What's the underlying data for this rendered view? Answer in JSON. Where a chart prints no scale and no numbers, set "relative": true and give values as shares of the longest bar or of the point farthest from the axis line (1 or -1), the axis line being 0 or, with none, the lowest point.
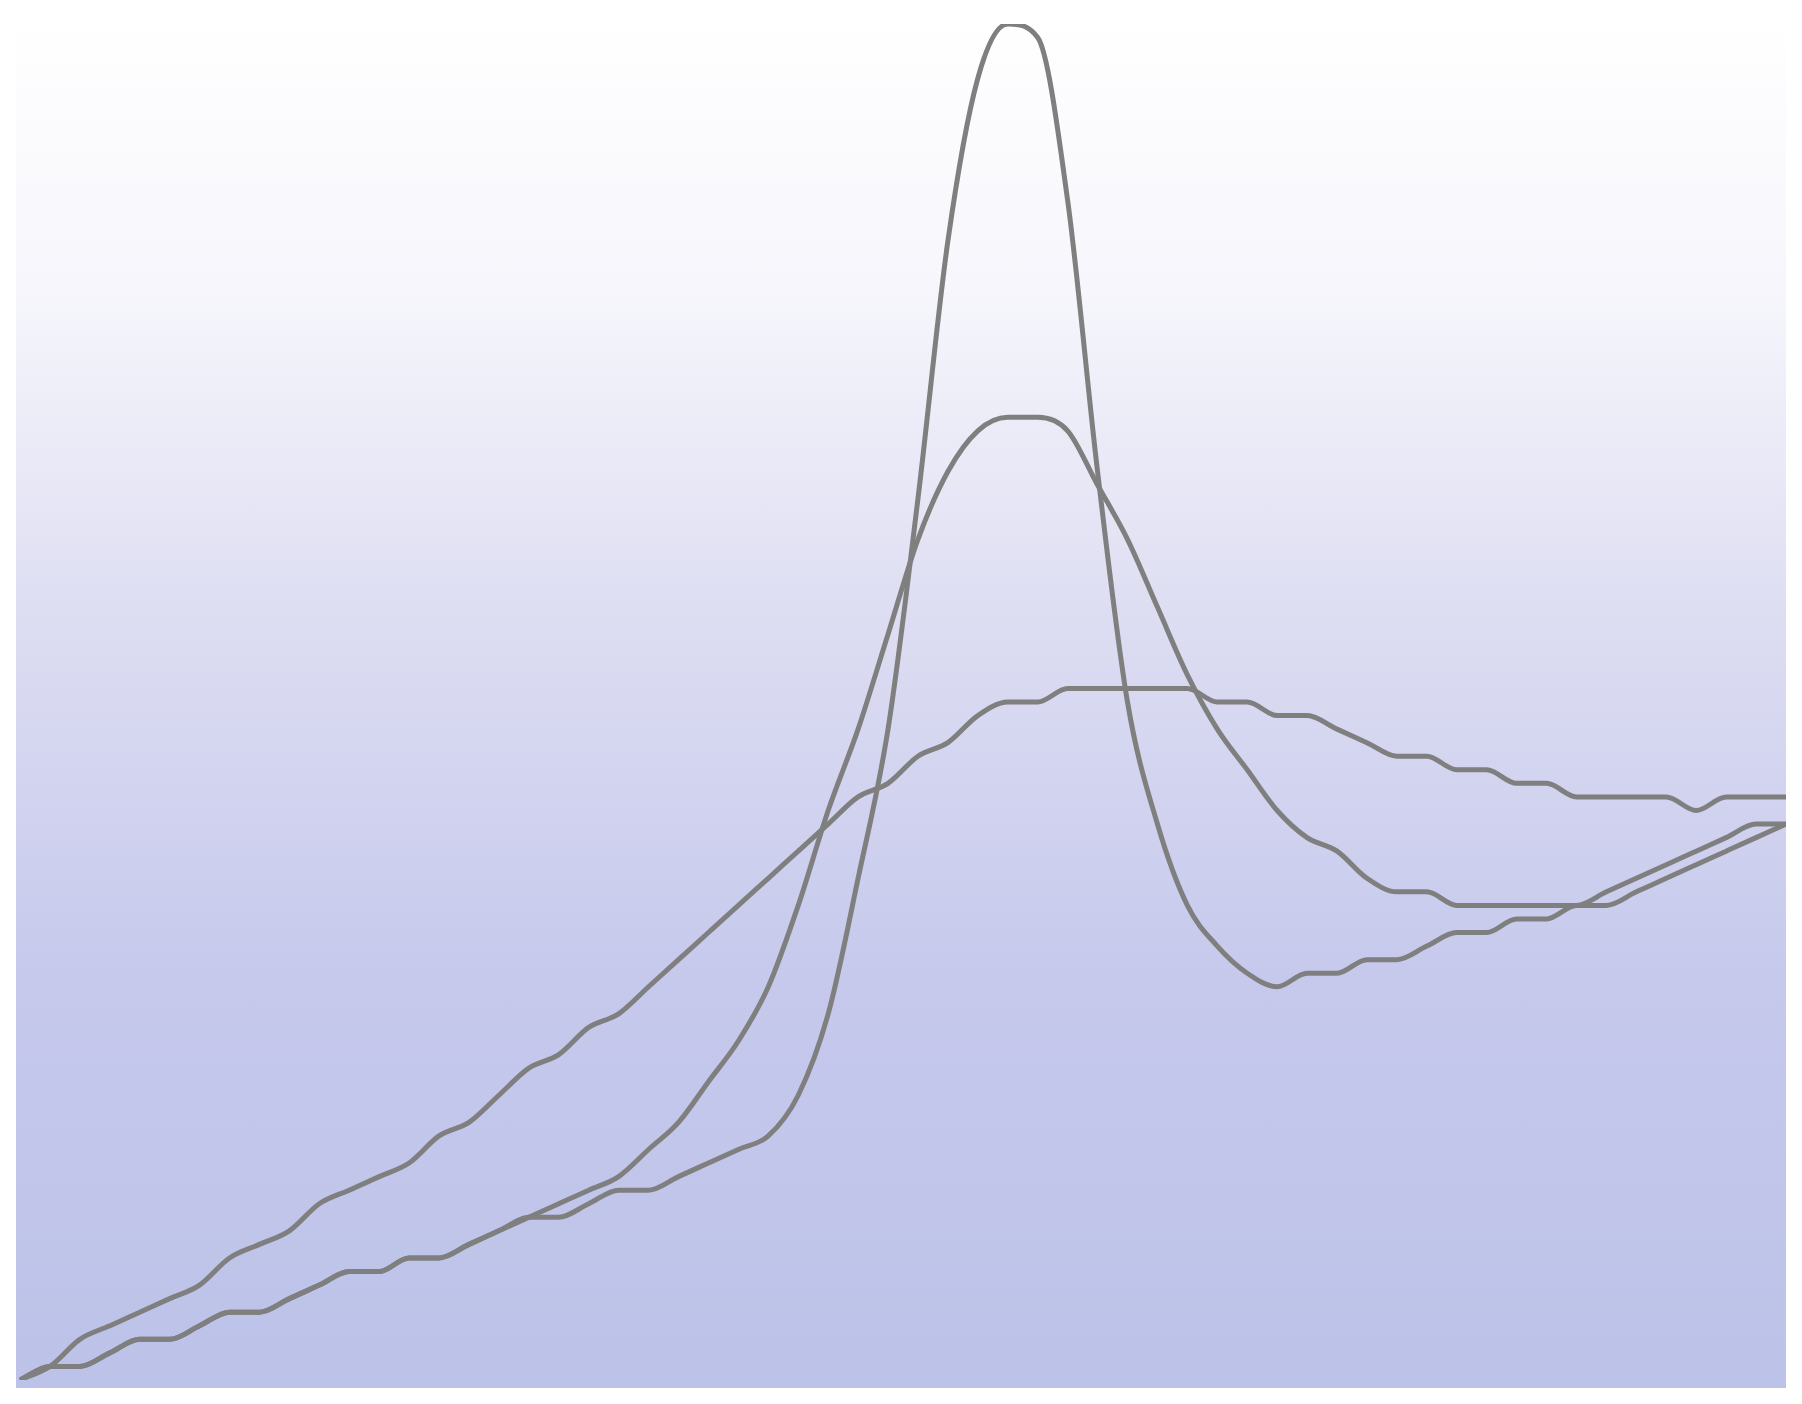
{
  "chart_data": {
    "type": "line",
    "relative": true,
    "categories": [
      null,
      null,
      null,
      null,
      null,
      null,
      null,
      null,
      null,
      null,
      null,
      null,
      null,
      null,
      null,
      null,
      null,
      null,
      null,
      null,
      null,
      null,
      null,
      null,
      null,
      null,
      null,
      null,
      null,
      null,
      null,
      null,
      null,
      null,
      null,
      null,
      null,
      null,
      null,
      null,
      null,
      null,
      null,
      null,
      null,
      null,
      null,
      null,
      null,
      null,
      null,
      null,
      null,
      null,
      null,
      null,
      null,
      null,
      null,
      null
    ],
    "series": [
      {
        "color": "#7f7f7f",
        "values": [
          0,
          0.01,
          0.01,
          0.02,
          0.03,
          0.03,
          0.04,
          0.05,
          0.05,
          0.06,
          0.07,
          0.08,
          0.08,
          0.09,
          0.09,
          0.1,
          0.11,
          0.12,
          0.12,
          0.13,
          0.14,
          0.14,
          0.15,
          0.16,
          0.17,
          0.18,
          0.21,
          0.27,
          0.37,
          0.48,
          0.65,
          0.84,
          0.96,
          1,
          0.99,
          0.87,
          0.67,
          0.5,
          0.41,
          0.35,
          0.32,
          0.3,
          0.29,
          0.3,
          0.3,
          0.31,
          0.31,
          0.32,
          0.33,
          0.33,
          0.34,
          0.34,
          0.35,
          0.35,
          0.36,
          0.37,
          0.38,
          0.39,
          0.4,
          0.41
        ]
      },
      {
        "color": "#7f7f7f",
        "values": [
          0,
          0.01,
          0.01,
          0.02,
          0.03,
          0.03,
          0.04,
          0.05,
          0.05,
          0.06,
          0.07,
          0.08,
          0.08,
          0.09,
          0.09,
          0.1,
          0.11,
          0.12,
          0.13,
          0.14,
          0.15,
          0.17,
          0.19,
          0.22,
          0.25,
          0.29,
          0.35,
          0.42,
          0.48,
          0.55,
          0.62,
          0.67,
          0.7,
          0.71,
          0.71,
          0.7,
          0.66,
          0.62,
          0.57,
          0.52,
          0.48,
          0.45,
          0.42,
          0.4,
          0.39,
          0.37,
          0.36,
          0.36,
          0.35,
          0.35,
          0.35,
          0.35,
          0.35,
          0.36,
          0.37,
          0.38,
          0.39,
          0.4,
          0.41,
          0.41
        ]
      },
      {
        "color": "#7f7f7f",
        "values": [
          0,
          0.01,
          0.03,
          0.04,
          0.05,
          0.06,
          0.07,
          0.09,
          0.1,
          0.11,
          0.13,
          0.14,
          0.15,
          0.16,
          0.18,
          0.19,
          0.21,
          0.23,
          0.24,
          0.26,
          0.27,
          0.29,
          0.31,
          0.33,
          0.35,
          0.37,
          0.39,
          0.41,
          0.43,
          0.44,
          0.46,
          0.47,
          0.49,
          0.5,
          0.5,
          0.51,
          0.51,
          0.51,
          0.51,
          0.51,
          0.5,
          0.5,
          0.49,
          0.49,
          0.48,
          0.47,
          0.46,
          0.46,
          0.45,
          0.45,
          0.44,
          0.44,
          0.43,
          0.43,
          0.43,
          0.43,
          0.42,
          0.43,
          0.43,
          0.43
        ]
      }
    ]
  }
}
